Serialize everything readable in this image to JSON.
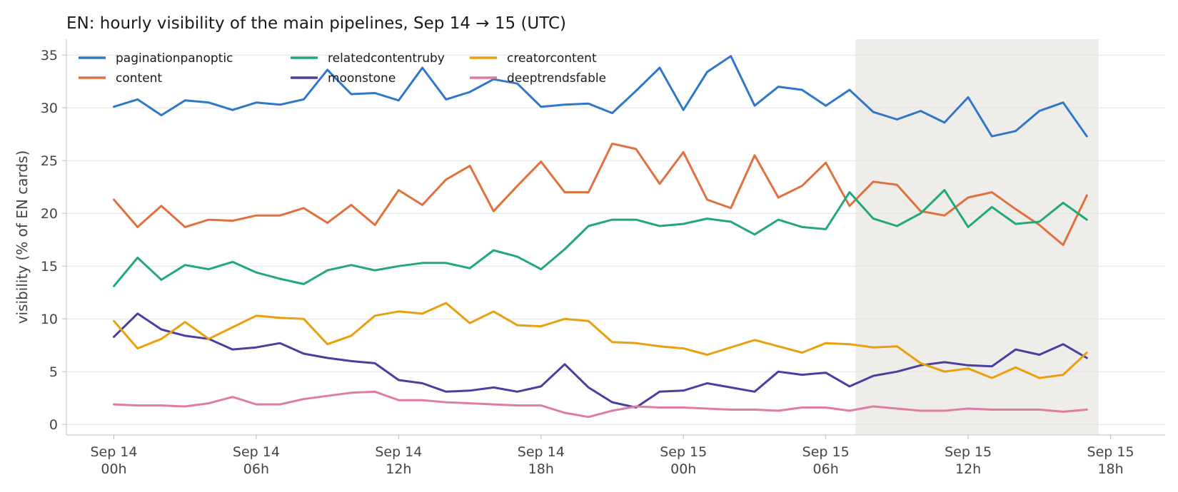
{
  "chart_data": {
    "type": "line",
    "title": "EN: hourly visibility of the main pipelines, Sep 14 → 15 (UTC)",
    "xlabel": "",
    "ylabel": "visibility (% of EN cards)",
    "ylim": [
      -1,
      36.5
    ],
    "yticks": [
      0,
      5,
      10,
      15,
      20,
      25,
      30,
      35
    ],
    "x_start": "Sep 14 00h",
    "x_step": "1 hour",
    "xlim_hours": [
      -2,
      44.3
    ],
    "xticks": [
      {
        "hour": 0,
        "line1": "Sep 14",
        "line2": "00h"
      },
      {
        "hour": 6,
        "line1": "Sep 14",
        "line2": "06h"
      },
      {
        "hour": 12,
        "line1": "Sep 14",
        "line2": "12h"
      },
      {
        "hour": 18,
        "line1": "Sep 14",
        "line2": "18h"
      },
      {
        "hour": 24,
        "line1": "Sep 15",
        "line2": "00h"
      },
      {
        "hour": 30,
        "line1": "Sep 15",
        "line2": "06h"
      },
      {
        "hour": 36,
        "line1": "Sep 15",
        "line2": "12h"
      },
      {
        "hour": 42,
        "line1": "Sep 15",
        "line2": "18h"
      }
    ],
    "shaded_region_hours": [
      31.25,
      41.5
    ],
    "shaded_color": "#eeede9",
    "grid": "horizontal",
    "legend": "top-left",
    "series": [
      {
        "name": "paginationpanoptic",
        "color": "#2f78c8",
        "values": [
          30.1,
          30.8,
          29.3,
          30.7,
          30.5,
          29.8,
          30.5,
          30.3,
          30.8,
          33.6,
          31.3,
          31.4,
          30.7,
          33.8,
          30.8,
          31.5,
          32.7,
          32.3,
          30.1,
          30.3,
          30.4,
          29.5,
          31.6,
          33.8,
          29.8,
          33.4,
          34.9,
          30.2,
          32.0,
          31.7,
          30.2,
          31.7,
          29.6,
          28.9,
          29.7,
          28.6,
          31.0,
          27.3,
          27.8,
          29.7,
          30.5,
          27.3
        ]
      },
      {
        "name": "content",
        "color": "#e0703c",
        "values": [
          21.3,
          18.7,
          20.7,
          18.7,
          19.4,
          19.3,
          19.8,
          19.8,
          20.5,
          19.1,
          20.8,
          18.9,
          22.2,
          20.8,
          23.2,
          24.5,
          20.2,
          22.6,
          24.9,
          22.0,
          22.0,
          26.6,
          26.1,
          22.8,
          25.8,
          21.3,
          20.5,
          25.5,
          21.5,
          22.6,
          24.8,
          20.7,
          23.0,
          22.7,
          20.2,
          19.8,
          21.5,
          22.0,
          20.4,
          18.9,
          17.0,
          21.7
        ]
      },
      {
        "name": "relatedcontentruby",
        "color": "#23a878",
        "values": [
          13.1,
          15.8,
          13.7,
          15.1,
          14.7,
          15.4,
          14.4,
          13.8,
          13.3,
          14.6,
          15.1,
          14.6,
          15.0,
          15.3,
          15.3,
          14.8,
          16.5,
          15.9,
          14.7,
          16.6,
          18.8,
          19.4,
          19.4,
          18.8,
          19.0,
          19.5,
          19.2,
          18.0,
          19.4,
          18.7,
          18.5,
          22.0,
          19.5,
          18.8,
          20.0,
          22.2,
          18.7,
          20.6,
          19.0,
          19.2,
          21.0,
          19.4
        ]
      },
      {
        "name": "moonstone",
        "color": "#4a3ea0",
        "values": [
          8.3,
          10.5,
          9.0,
          8.4,
          8.1,
          7.1,
          7.3,
          7.7,
          6.7,
          6.3,
          6.0,
          5.8,
          4.2,
          3.9,
          3.1,
          3.2,
          3.5,
          3.1,
          3.6,
          5.7,
          3.5,
          2.1,
          1.6,
          3.1,
          3.2,
          3.9,
          3.5,
          3.1,
          5.0,
          4.7,
          4.9,
          3.6,
          4.6,
          5.0,
          5.6,
          5.9,
          5.6,
          5.5,
          7.1,
          6.6,
          7.6,
          6.3
        ]
      },
      {
        "name": "creatorcontent",
        "color": "#e8a00e",
        "values": [
          9.8,
          7.2,
          8.1,
          9.7,
          8.1,
          9.2,
          10.3,
          10.1,
          10.0,
          7.6,
          8.4,
          10.3,
          10.7,
          10.5,
          11.5,
          9.6,
          10.7,
          9.4,
          9.3,
          10.0,
          9.8,
          7.8,
          7.7,
          7.4,
          7.2,
          6.6,
          7.3,
          8.0,
          7.4,
          6.8,
          7.7,
          7.6,
          7.3,
          7.4,
          5.8,
          5.0,
          5.3,
          4.4,
          5.4,
          4.4,
          4.7,
          6.8
        ]
      },
      {
        "name": "deeptrendsfable",
        "color": "#e07ca4",
        "values": [
          1.9,
          1.8,
          1.8,
          1.7,
          2.0,
          2.6,
          1.9,
          1.9,
          2.4,
          2.7,
          3.0,
          3.1,
          2.3,
          2.3,
          2.1,
          2.0,
          1.9,
          1.8,
          1.8,
          1.1,
          0.7,
          1.3,
          1.7,
          1.6,
          1.6,
          1.5,
          1.4,
          1.4,
          1.3,
          1.6,
          1.6,
          1.3,
          1.7,
          1.5,
          1.3,
          1.3,
          1.5,
          1.4,
          1.4,
          1.4,
          1.2,
          1.4
        ]
      }
    ]
  }
}
